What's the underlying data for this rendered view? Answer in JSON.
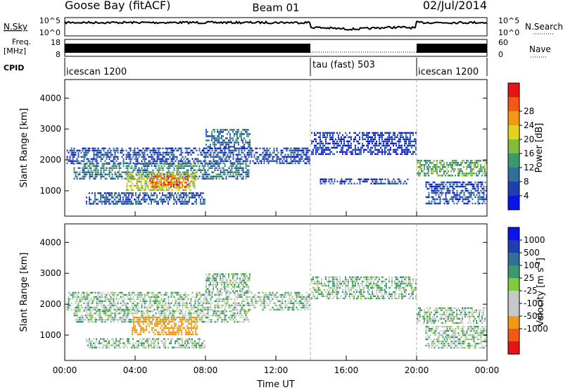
{
  "header": {
    "station": "Goose Bay (fitACF)",
    "beam": "Beam 01",
    "date": "02/Jul/2014"
  },
  "strips": {
    "nsky_label": "N.Sky",
    "nsky_ticks": [
      "10^5",
      "10^0"
    ],
    "nsearch_label": "N.Search",
    "freq_label_1": "Freq.",
    "freq_label_2": "[MHz]",
    "freq_ticks": [
      "18",
      "8"
    ],
    "nave_label": "Nave",
    "nave_ticks": [
      "60",
      "0"
    ],
    "cpid_label": "CPID",
    "modes": [
      {
        "name": "icescan 1200",
        "start": 0,
        "end": 14
      },
      {
        "name": "tau (fast) 503",
        "start": 14,
        "end": 20
      },
      {
        "name": "icescan 1200",
        "start": 20,
        "end": 24
      }
    ]
  },
  "colors": {
    "power": [
      "#0a14e6",
      "#1f3fb0",
      "#2f6f9a",
      "#3a9a6e",
      "#7fbe3c",
      "#e2d21e",
      "#f29a14",
      "#ef5a14",
      "#e61414"
    ],
    "velocity": [
      "#e61414",
      "#ef5a14",
      "#f29a14",
      "#c8c8c8",
      "#c8c8c8",
      "#7fcc3c",
      "#3a9a6e",
      "#2f6f9a",
      "#1f3fb0",
      "#0a14e6"
    ]
  },
  "chart_data": [
    {
      "type": "heatmap",
      "title": "",
      "ylabel": "Slant Range [km]",
      "xlabel": "",
      "xlim": [
        0,
        24
      ],
      "ylim": [
        180,
        4600
      ],
      "yticks": [
        "1000",
        "2000",
        "3000",
        "4000"
      ],
      "colorbar_label": "Power [dB]",
      "colorbar_ticks": [
        "4",
        "8",
        "12",
        "16",
        "20",
        "24",
        "28"
      ],
      "regions": [
        {
          "t0": 0.1,
          "t1": 13.9,
          "r0": 1900,
          "r1": 2400,
          "v": 6
        },
        {
          "t0": 0.5,
          "t1": 10.5,
          "r0": 1400,
          "r1": 1900,
          "v": 10
        },
        {
          "t0": 1.2,
          "t1": 8.0,
          "r0": 600,
          "r1": 950,
          "v": 7
        },
        {
          "t0": 3.5,
          "t1": 7.5,
          "r0": 1000,
          "r1": 1600,
          "v": 18
        },
        {
          "t0": 4.8,
          "t1": 7.0,
          "r0": 1100,
          "r1": 1500,
          "v": 26
        },
        {
          "t0": 8.0,
          "t1": 10.5,
          "r0": 2400,
          "r1": 3000,
          "v": 9
        },
        {
          "t0": 14.0,
          "t1": 20.0,
          "r0": 2200,
          "r1": 2900,
          "v": 4
        },
        {
          "t0": 14.5,
          "t1": 19.5,
          "r0": 1250,
          "r1": 1400,
          "v": 5
        },
        {
          "t0": 20.0,
          "t1": 24.0,
          "r0": 1500,
          "r1": 2000,
          "v": 14
        },
        {
          "t0": 20.5,
          "t1": 24.0,
          "r0": 600,
          "r1": 1300,
          "v": 6
        }
      ]
    },
    {
      "type": "heatmap",
      "title": "",
      "ylabel": "Slant Range [km]",
      "xlabel": "Time UT",
      "xlim": [
        0,
        24
      ],
      "ylim": [
        180,
        4600
      ],
      "xticks": [
        "00:00",
        "04:00",
        "08:00",
        "12:00",
        "16:00",
        "20:00",
        "00:00"
      ],
      "yticks": [
        "1000",
        "2000",
        "3000",
        "4000"
      ],
      "colorbar_label": "Velocity [m s^-1]",
      "colorbar_ticks": [
        "1000",
        "500",
        "100",
        "25",
        "-25",
        "-100",
        "-500",
        "-1000"
      ],
      "regions": [
        {
          "t0": 0.1,
          "t1": 13.9,
          "r0": 1800,
          "r1": 2400,
          "v": 0
        },
        {
          "t0": 0.5,
          "t1": 10.5,
          "r0": 1400,
          "r1": 1800,
          "v": 0
        },
        {
          "t0": 1.2,
          "t1": 8.0,
          "r0": 600,
          "r1": 900,
          "v": 0
        },
        {
          "t0": 3.8,
          "t1": 7.5,
          "r0": 1050,
          "r1": 1600,
          "v": -300
        },
        {
          "t0": 8.0,
          "t1": 10.5,
          "r0": 2400,
          "r1": 3000,
          "v": 0
        },
        {
          "t0": 14.0,
          "t1": 20.0,
          "r0": 2200,
          "r1": 2900,
          "v": 0
        },
        {
          "t0": 20.0,
          "t1": 24.0,
          "r0": 1400,
          "r1": 1900,
          "v": 0
        },
        {
          "t0": 20.5,
          "t1": 24.0,
          "r0": 600,
          "r1": 1300,
          "v": 0
        }
      ]
    }
  ]
}
